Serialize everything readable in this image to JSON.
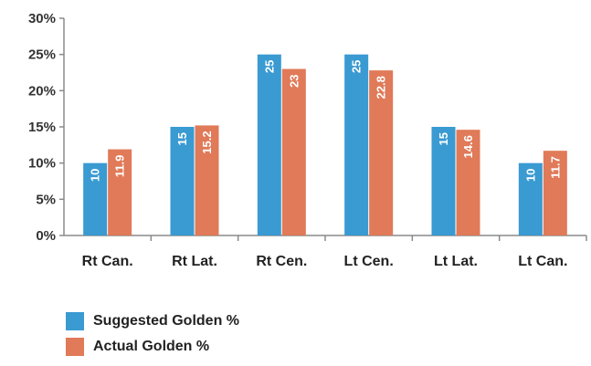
{
  "chart_data": {
    "type": "bar",
    "categories": [
      "Rt Can.",
      "Rt Lat.",
      "Rt Cen.",
      "Lt Cen.",
      "Lt Lat.",
      "Lt Can."
    ],
    "series": [
      {
        "name": "Suggested Golden %",
        "color": "#3a9ad2",
        "values": [
          10,
          15,
          25,
          25,
          15,
          10
        ],
        "data_labels": [
          "10",
          "15",
          "25",
          "25",
          "15",
          "10"
        ]
      },
      {
        "name": "Actual Golden %",
        "color": "#e07a58",
        "values": [
          11.9,
          15.2,
          23,
          22.8,
          14.6,
          11.7
        ],
        "data_labels": [
          "11.9",
          "15.2",
          "23",
          "22.8",
          "14.6",
          "11.7"
        ]
      }
    ],
    "y_ticks": [
      "0%",
      "5%",
      "10%",
      "15%",
      "20%",
      "25%",
      "30%"
    ],
    "ylim": [
      0,
      30
    ],
    "grid": false,
    "legend_position": "bottom-left",
    "title": "",
    "xlabel": "",
    "ylabel": ""
  }
}
